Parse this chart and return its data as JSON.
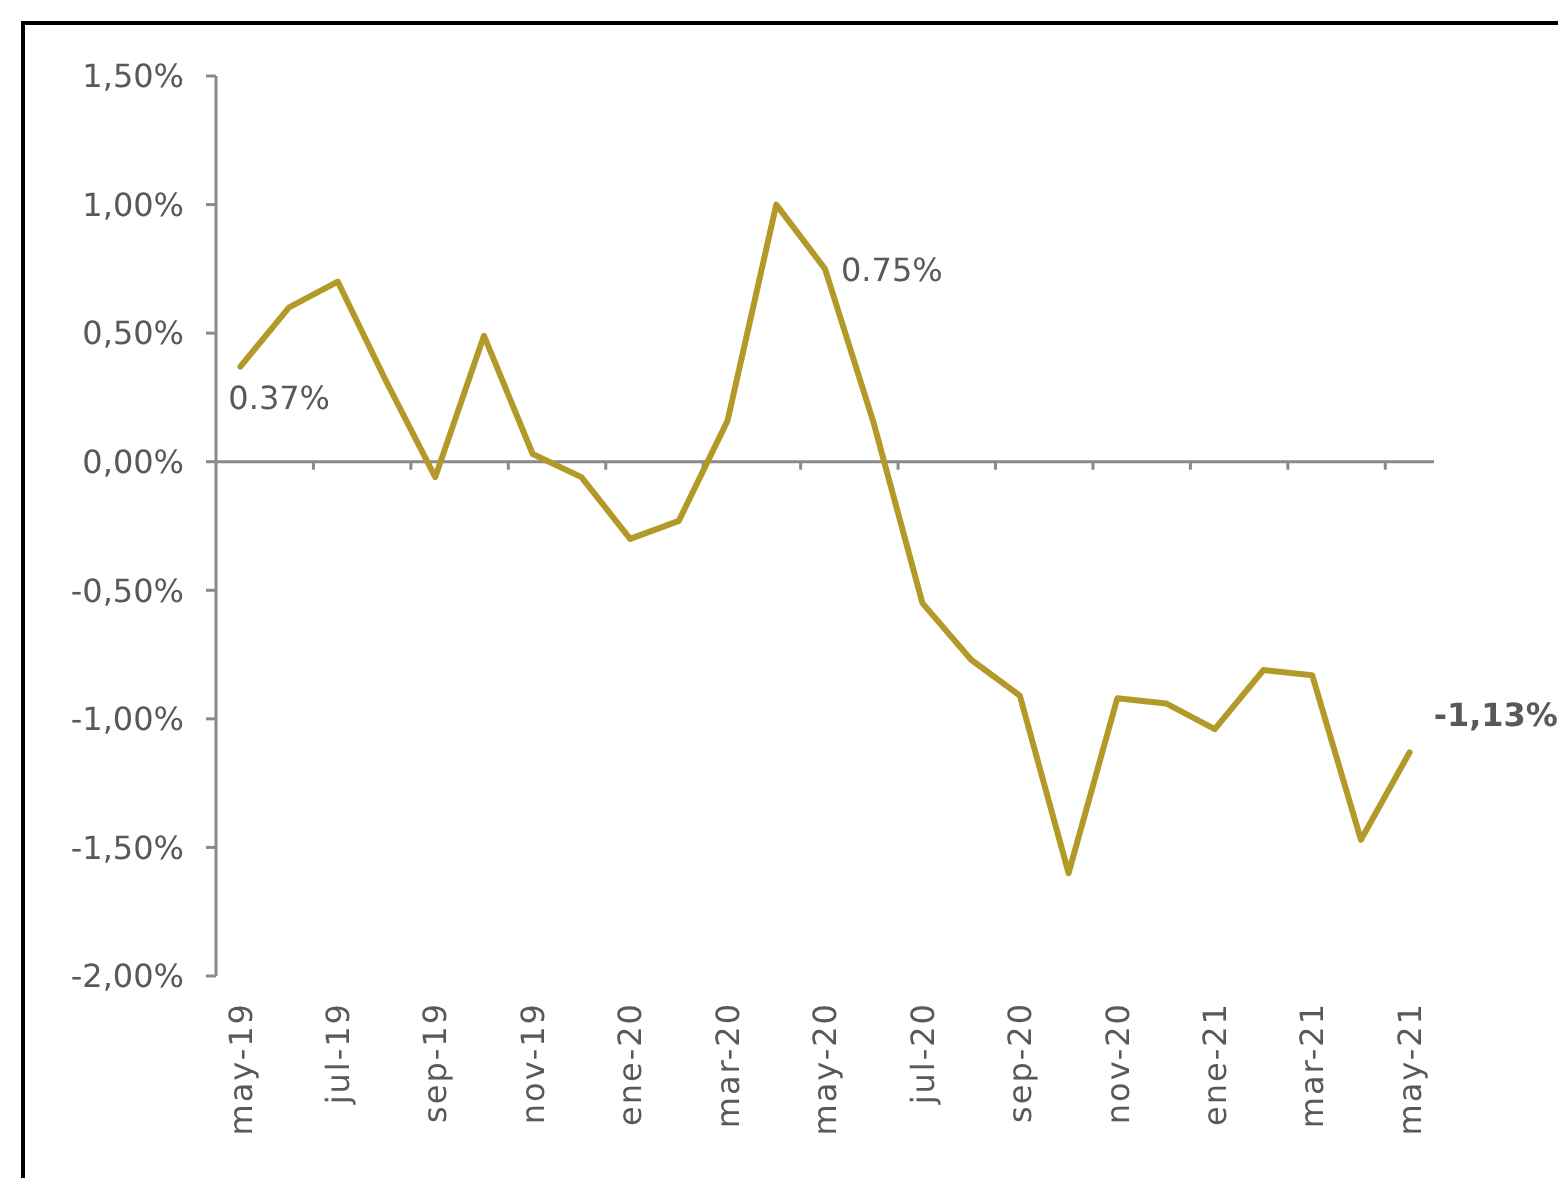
{
  "chart_data": {
    "type": "line",
    "categories": [
      "may-19",
      null,
      "jul-19",
      null,
      "sep-19",
      null,
      "nov-19",
      null,
      "ene-20",
      null,
      "mar-20",
      null,
      "may-20",
      null,
      "jul-20",
      null,
      "sep-20",
      null,
      "nov-20",
      null,
      "ene-21",
      null,
      "mar-21",
      null,
      "may-21"
    ],
    "values": [
      0.37,
      0.6,
      0.7,
      0.31,
      -0.06,
      0.49,
      0.03,
      -0.06,
      -0.3,
      -0.23,
      0.16,
      1.0,
      0.75,
      0.15,
      -0.55,
      -0.77,
      -0.91,
      -1.6,
      -0.92,
      -0.94,
      -1.04,
      -0.81,
      -0.83,
      -1.47,
      -1.13
    ],
    "value_labels": [
      "0.37%",
      null,
      null,
      null,
      null,
      null,
      null,
      null,
      null,
      null,
      null,
      null,
      "0.75%",
      null,
      null,
      null,
      null,
      null,
      null,
      null,
      null,
      null,
      null,
      null,
      "-1,13%"
    ],
    "color": "#b39a28",
    "ylim": [
      -2,
      1.5
    ],
    "yticks": [
      {
        "value": -2,
        "label": "-2,00%"
      },
      {
        "value": -1.5,
        "label": "-1,50%"
      },
      {
        "value": -1,
        "label": "-1,00%"
      },
      {
        "value": -0.5,
        "label": "-0,50%"
      },
      {
        "value": 0,
        "label": "0,00%"
      },
      {
        "value": 0.5,
        "label": "0,50%"
      },
      {
        "value": 1,
        "label": "1,00%"
      },
      {
        "value": 1.5,
        "label": "1,50%"
      }
    ]
  }
}
